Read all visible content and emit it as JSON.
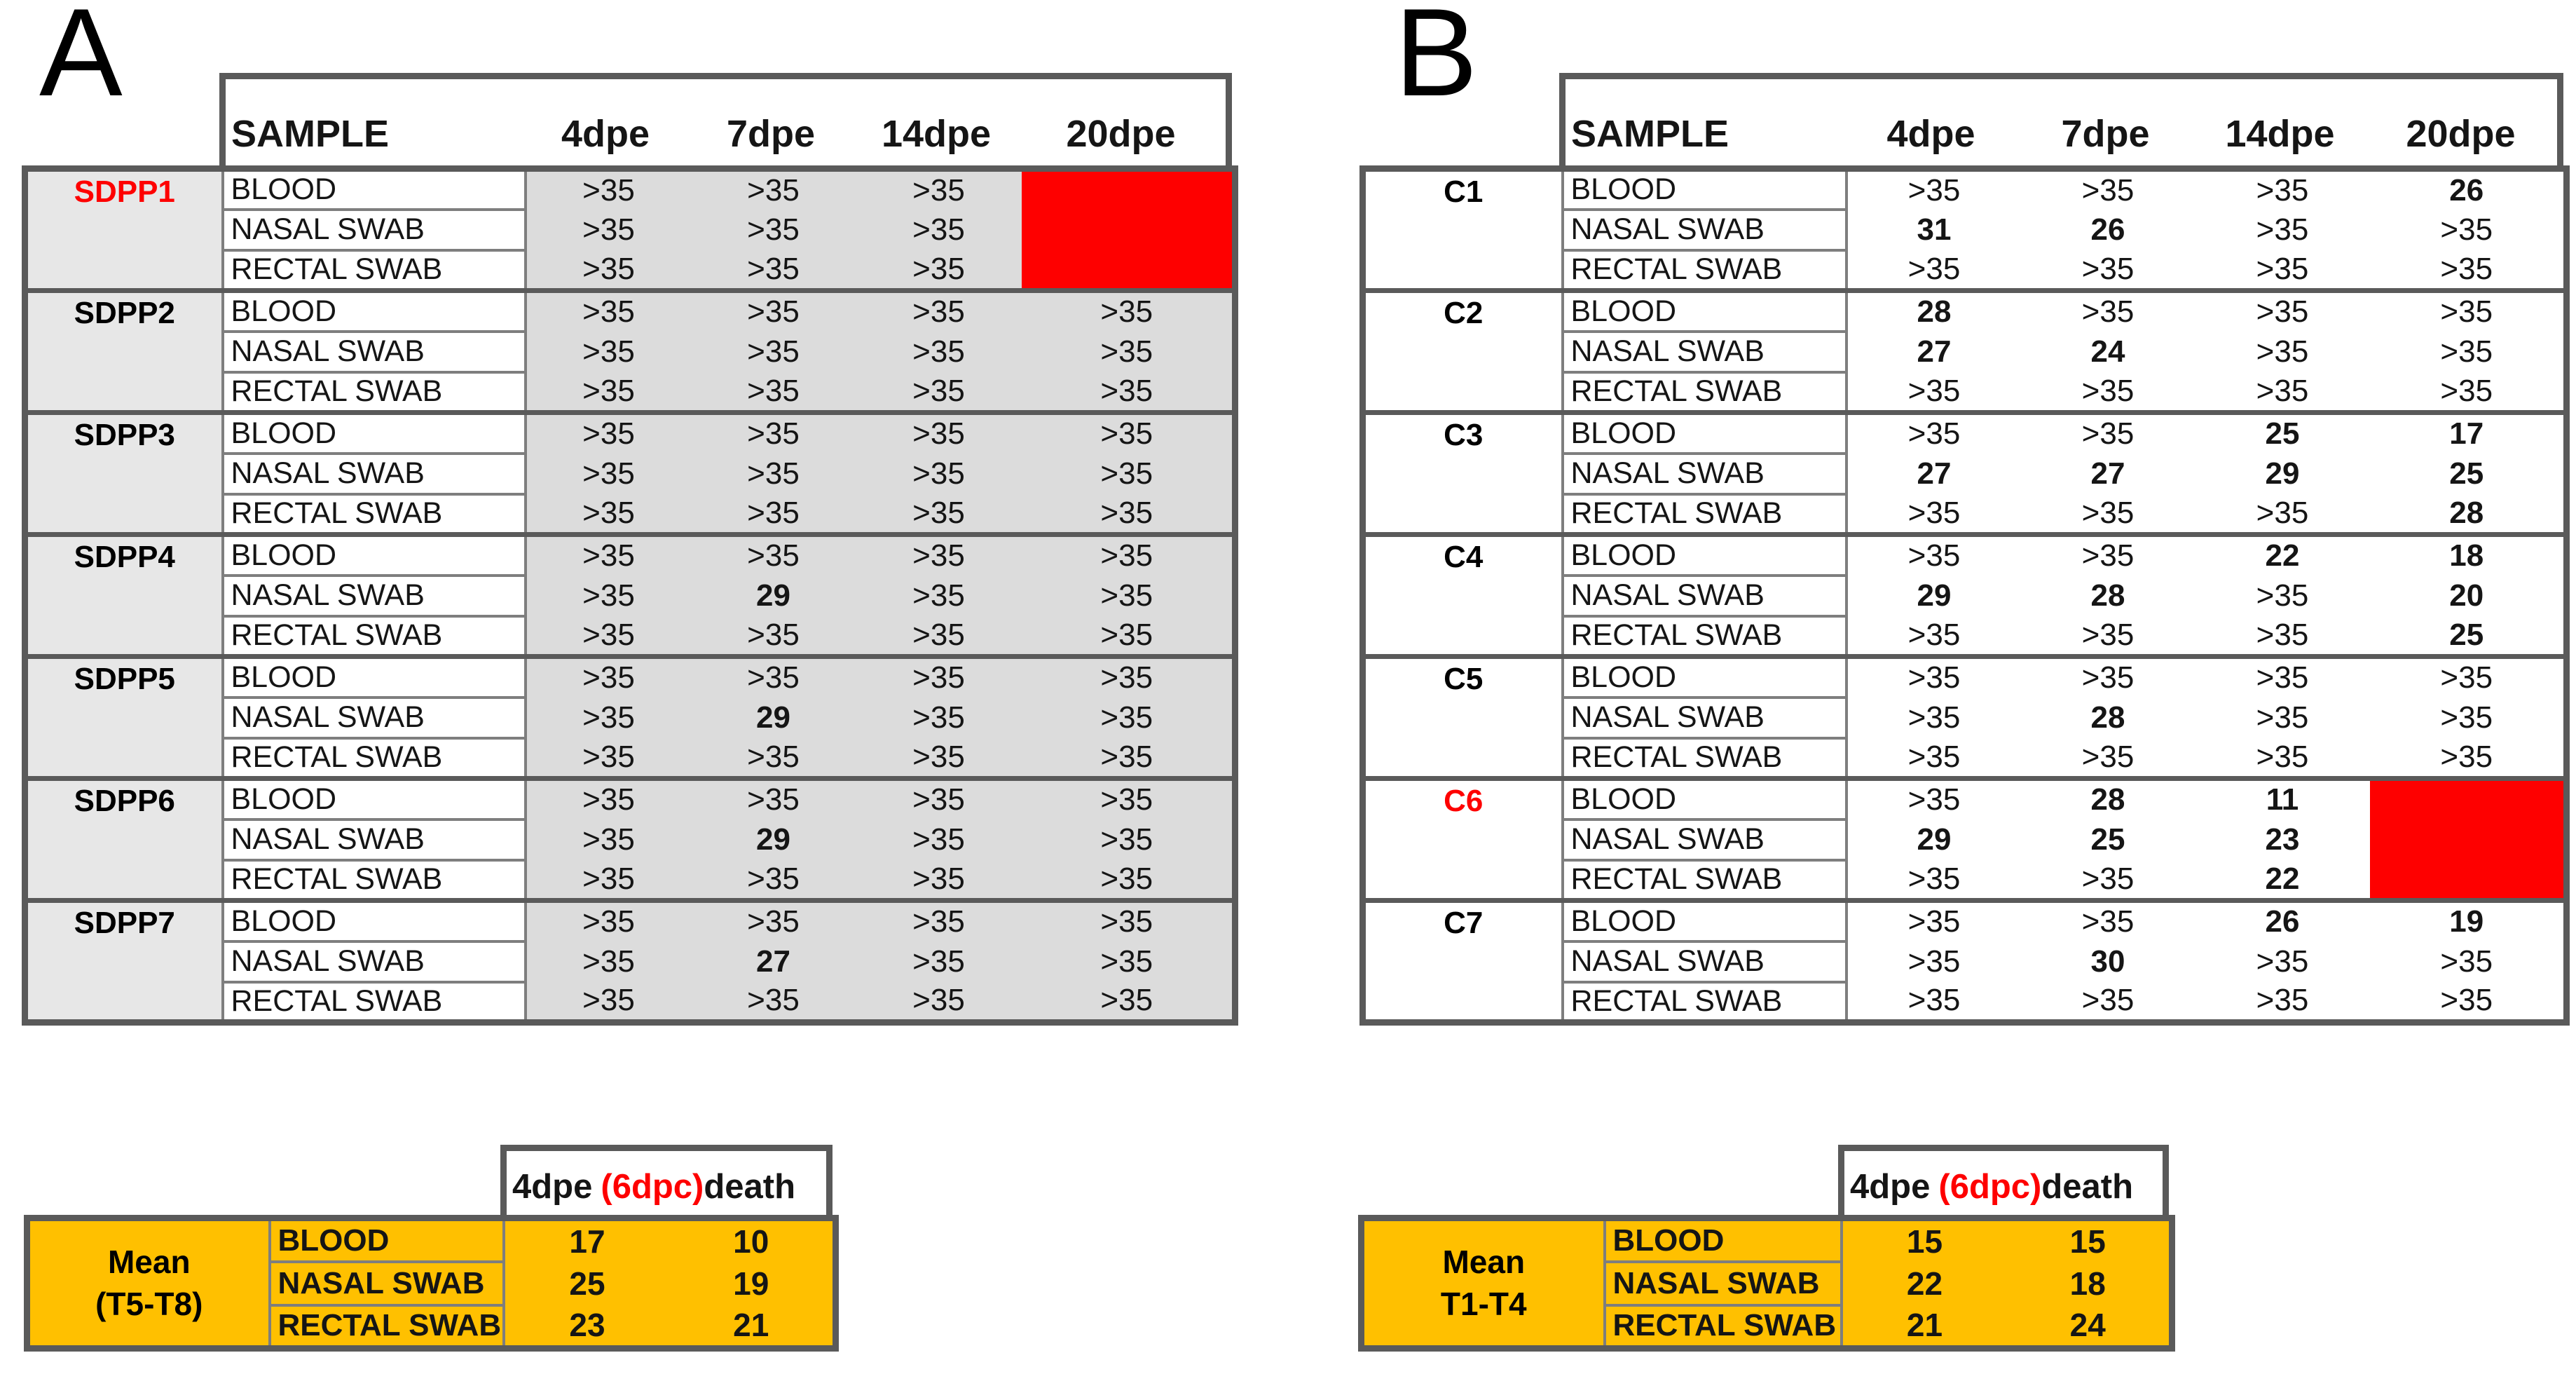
{
  "colors": {
    "red": "#FE0000",
    "orange": "#FFC000",
    "gray_fill": "#DCDCDC",
    "label_gray_fill": "#E7E7E7",
    "border_dark": "#5A5A5A",
    "border_cell": "#7E7E7E"
  },
  "panels": [
    {
      "label": "A",
      "shaded": true,
      "main_table": {
        "headers": [
          "SAMPLE",
          "4dpe",
          "7dpe",
          "14dpe",
          "20dpe"
        ],
        "groups": [
          {
            "id": "SDPP1",
            "id_color": "red",
            "dead": true,
            "rows": [
              {
                "sample": "BLOOD",
                "values": [
                  ">35",
                  ">35",
                  ">35",
                  null
                ]
              },
              {
                "sample": "NASAL SWAB",
                "values": [
                  ">35",
                  ">35",
                  ">35",
                  null
                ]
              },
              {
                "sample": "RECTAL SWAB",
                "values": [
                  ">35",
                  ">35",
                  ">35",
                  null
                ]
              }
            ]
          },
          {
            "id": "SDPP2",
            "id_color": "black",
            "dead": false,
            "rows": [
              {
                "sample": "BLOOD",
                "values": [
                  ">35",
                  ">35",
                  ">35",
                  ">35"
                ]
              },
              {
                "sample": "NASAL SWAB",
                "values": [
                  ">35",
                  ">35",
                  ">35",
                  ">35"
                ]
              },
              {
                "sample": "RECTAL SWAB",
                "values": [
                  ">35",
                  ">35",
                  ">35",
                  ">35"
                ]
              }
            ]
          },
          {
            "id": "SDPP3",
            "id_color": "black",
            "dead": false,
            "rows": [
              {
                "sample": "BLOOD",
                "values": [
                  ">35",
                  ">35",
                  ">35",
                  ">35"
                ]
              },
              {
                "sample": "NASAL SWAB",
                "values": [
                  ">35",
                  ">35",
                  ">35",
                  ">35"
                ]
              },
              {
                "sample": "RECTAL SWAB",
                "values": [
                  ">35",
                  ">35",
                  ">35",
                  ">35"
                ]
              }
            ]
          },
          {
            "id": "SDPP4",
            "id_color": "black",
            "dead": false,
            "rows": [
              {
                "sample": "BLOOD",
                "values": [
                  ">35",
                  ">35",
                  ">35",
                  ">35"
                ]
              },
              {
                "sample": "NASAL SWAB",
                "values": [
                  ">35",
                  "29",
                  ">35",
                  ">35"
                ]
              },
              {
                "sample": "RECTAL SWAB",
                "values": [
                  ">35",
                  ">35",
                  ">35",
                  ">35"
                ]
              }
            ]
          },
          {
            "id": "SDPP5",
            "id_color": "black",
            "dead": false,
            "rows": [
              {
                "sample": "BLOOD",
                "values": [
                  ">35",
                  ">35",
                  ">35",
                  ">35"
                ]
              },
              {
                "sample": "NASAL SWAB",
                "values": [
                  ">35",
                  "29",
                  ">35",
                  ">35"
                ]
              },
              {
                "sample": "RECTAL SWAB",
                "values": [
                  ">35",
                  ">35",
                  ">35",
                  ">35"
                ]
              }
            ]
          },
          {
            "id": "SDPP6",
            "id_color": "black",
            "dead": false,
            "rows": [
              {
                "sample": "BLOOD",
                "values": [
                  ">35",
                  ">35",
                  ">35",
                  ">35"
                ]
              },
              {
                "sample": "NASAL SWAB",
                "values": [
                  ">35",
                  "29",
                  ">35",
                  ">35"
                ]
              },
              {
                "sample": "RECTAL SWAB",
                "values": [
                  ">35",
                  ">35",
                  ">35",
                  ">35"
                ]
              }
            ]
          },
          {
            "id": "SDPP7",
            "id_color": "black",
            "dead": false,
            "rows": [
              {
                "sample": "BLOOD",
                "values": [
                  ">35",
                  ">35",
                  ">35",
                  ">35"
                ]
              },
              {
                "sample": "NASAL SWAB",
                "values": [
                  ">35",
                  "27",
                  ">35",
                  ">35"
                ]
              },
              {
                "sample": "RECTAL SWAB",
                "values": [
                  ">35",
                  ">35",
                  ">35",
                  ">35"
                ]
              }
            ]
          }
        ]
      },
      "summary_table": {
        "header": {
          "time": "4dpe",
          "paren": "(6dpc)",
          "death": "death"
        },
        "label_lines": [
          "Mean",
          "(T5-T8)"
        ],
        "rows": [
          {
            "sample": "BLOOD",
            "values": [
              "17",
              "10"
            ]
          },
          {
            "sample": "NASAL SWAB",
            "values": [
              "25",
              "19"
            ]
          },
          {
            "sample": "RECTAL SWAB",
            "values": [
              "23",
              "21"
            ]
          }
        ]
      }
    },
    {
      "label": "B",
      "shaded": false,
      "main_table": {
        "headers": [
          "SAMPLE",
          "4dpe",
          "7dpe",
          "14dpe",
          "20dpe"
        ],
        "groups": [
          {
            "id": "C1",
            "id_color": "black",
            "dead": false,
            "rows": [
              {
                "sample": "BLOOD",
                "values": [
                  ">35",
                  ">35",
                  ">35",
                  "26"
                ]
              },
              {
                "sample": "NASAL SWAB",
                "values": [
                  "31",
                  "26",
                  ">35",
                  ">35"
                ]
              },
              {
                "sample": "RECTAL SWAB",
                "values": [
                  ">35",
                  ">35",
                  ">35",
                  ">35"
                ]
              }
            ]
          },
          {
            "id": "C2",
            "id_color": "black",
            "dead": false,
            "rows": [
              {
                "sample": "BLOOD",
                "values": [
                  "28",
                  ">35",
                  ">35",
                  ">35"
                ]
              },
              {
                "sample": "NASAL SWAB",
                "values": [
                  "27",
                  "24",
                  ">35",
                  ">35"
                ]
              },
              {
                "sample": "RECTAL SWAB",
                "values": [
                  ">35",
                  ">35",
                  ">35",
                  ">35"
                ]
              }
            ]
          },
          {
            "id": "C3",
            "id_color": "black",
            "dead": false,
            "rows": [
              {
                "sample": "BLOOD",
                "values": [
                  ">35",
                  ">35",
                  "25",
                  "17"
                ]
              },
              {
                "sample": "NASAL SWAB",
                "values": [
                  "27",
                  "27",
                  "29",
                  "25"
                ]
              },
              {
                "sample": "RECTAL SWAB",
                "values": [
                  ">35",
                  ">35",
                  ">35",
                  "28"
                ]
              }
            ]
          },
          {
            "id": "C4",
            "id_color": "black",
            "dead": false,
            "rows": [
              {
                "sample": "BLOOD",
                "values": [
                  ">35",
                  ">35",
                  "22",
                  "18"
                ]
              },
              {
                "sample": "NASAL SWAB",
                "values": [
                  "29",
                  "28",
                  ">35",
                  "20"
                ]
              },
              {
                "sample": "RECTAL SWAB",
                "values": [
                  ">35",
                  ">35",
                  ">35",
                  "25"
                ]
              }
            ]
          },
          {
            "id": "C5",
            "id_color": "black",
            "dead": false,
            "rows": [
              {
                "sample": "BLOOD",
                "values": [
                  ">35",
                  ">35",
                  ">35",
                  ">35"
                ]
              },
              {
                "sample": "NASAL SWAB",
                "values": [
                  ">35",
                  "28",
                  ">35",
                  ">35"
                ]
              },
              {
                "sample": "RECTAL SWAB",
                "values": [
                  ">35",
                  ">35",
                  ">35",
                  ">35"
                ]
              }
            ]
          },
          {
            "id": "C6",
            "id_color": "red",
            "dead": true,
            "rows": [
              {
                "sample": "BLOOD",
                "values": [
                  ">35",
                  "28",
                  "11",
                  null
                ]
              },
              {
                "sample": "NASAL SWAB",
                "values": [
                  "29",
                  "25",
                  "23",
                  null
                ]
              },
              {
                "sample": "RECTAL SWAB",
                "values": [
                  ">35",
                  ">35",
                  "22",
                  null
                ]
              }
            ]
          },
          {
            "id": "C7",
            "id_color": "black",
            "dead": false,
            "rows": [
              {
                "sample": "BLOOD",
                "values": [
                  ">35",
                  ">35",
                  "26",
                  "19"
                ]
              },
              {
                "sample": "NASAL SWAB",
                "values": [
                  ">35",
                  "30",
                  ">35",
                  ">35"
                ]
              },
              {
                "sample": "RECTAL SWAB",
                "values": [
                  ">35",
                  ">35",
                  ">35",
                  ">35"
                ]
              }
            ]
          }
        ]
      },
      "summary_table": {
        "header": {
          "time": "4dpe",
          "paren": "(6dpc)",
          "death": "death"
        },
        "label_lines": [
          "Mean",
          "T1-T4"
        ],
        "rows": [
          {
            "sample": "BLOOD",
            "values": [
              "15",
              "15"
            ]
          },
          {
            "sample": "NASAL SWAB",
            "values": [
              "22",
              "18"
            ]
          },
          {
            "sample": "RECTAL SWAB",
            "values": [
              "21",
              "24"
            ]
          }
        ]
      }
    }
  ]
}
